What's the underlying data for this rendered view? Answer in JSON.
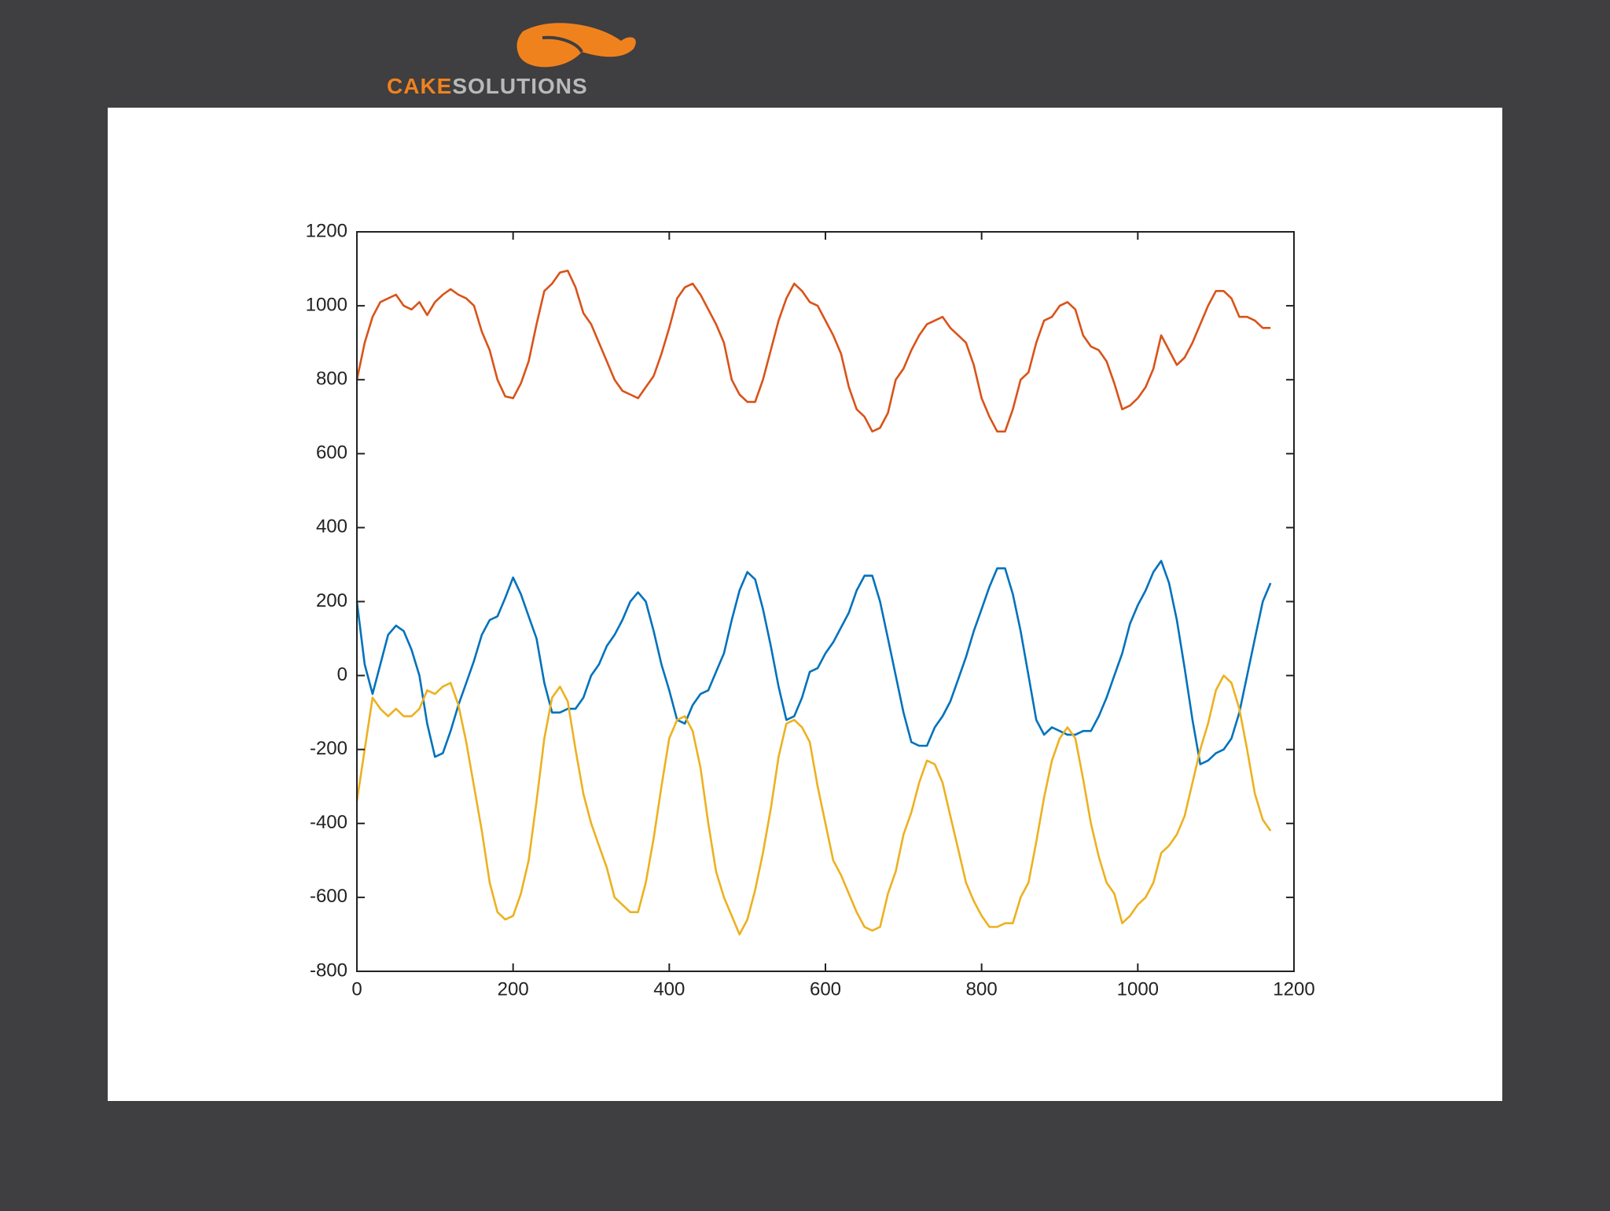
{
  "logo": {
    "part1": "CAKE",
    "part2": "SOLUTIONS"
  },
  "chart_data": {
    "type": "line",
    "x": [
      0,
      10,
      20,
      30,
      40,
      50,
      60,
      70,
      80,
      90,
      100,
      110,
      120,
      130,
      140,
      150,
      160,
      170,
      180,
      190,
      200,
      210,
      220,
      230,
      240,
      250,
      260,
      270,
      280,
      290,
      300,
      310,
      320,
      330,
      340,
      350,
      360,
      370,
      380,
      390,
      400,
      410,
      420,
      430,
      440,
      450,
      460,
      470,
      480,
      490,
      500,
      510,
      520,
      530,
      540,
      550,
      560,
      570,
      580,
      590,
      600,
      610,
      620,
      630,
      640,
      650,
      660,
      670,
      680,
      690,
      700,
      710,
      720,
      730,
      740,
      750,
      760,
      770,
      780,
      790,
      800,
      810,
      820,
      830,
      840,
      850,
      860,
      870,
      880,
      890,
      900,
      910,
      920,
      930,
      940,
      950,
      960,
      970,
      980,
      990,
      1000,
      1010,
      1020,
      1030,
      1040,
      1050,
      1060,
      1070,
      1080,
      1090,
      1100,
      1110,
      1120,
      1130,
      1140,
      1150,
      1160,
      1170
    ],
    "series": [
      {
        "color": "#d95319",
        "values": [
          800,
          900,
          970,
          1010,
          1020,
          1030,
          1000,
          990,
          1010,
          975,
          1010,
          1030,
          1045,
          1030,
          1020,
          1000,
          930,
          880,
          800,
          755,
          750,
          790,
          850,
          950,
          1040,
          1060,
          1090,
          1095,
          1050,
          980,
          950,
          900,
          850,
          800,
          770,
          760,
          750,
          780,
          810,
          870,
          940,
          1020,
          1050,
          1060,
          1030,
          990,
          950,
          900,
          800,
          760,
          740,
          740,
          800,
          880,
          960,
          1020,
          1060,
          1040,
          1010,
          1000,
          960,
          920,
          870,
          780,
          720,
          700,
          660,
          670,
          710,
          800,
          830,
          880,
          920,
          950,
          960,
          970,
          940,
          920,
          900,
          840,
          750,
          700,
          660,
          660,
          720,
          800,
          820,
          900,
          960,
          970,
          1000,
          1010,
          990,
          920,
          890,
          880,
          850,
          790,
          720,
          730,
          750,
          780,
          830,
          920,
          880,
          840,
          860,
          900,
          950,
          1000,
          1040,
          1040,
          1020,
          970,
          970,
          960,
          940,
          940
        ]
      },
      {
        "color": "#0072bd",
        "values": [
          200,
          30,
          -50,
          30,
          110,
          135,
          120,
          70,
          0,
          -130,
          -220,
          -210,
          -150,
          -80,
          -20,
          40,
          110,
          150,
          160,
          210,
          265,
          220,
          160,
          100,
          -20,
          -100,
          -100,
          -90,
          -90,
          -60,
          0,
          30,
          80,
          110,
          150,
          200,
          225,
          200,
          120,
          30,
          -40,
          -120,
          -130,
          -80,
          -50,
          -40,
          10,
          60,
          150,
          230,
          280,
          260,
          180,
          80,
          -30,
          -120,
          -110,
          -60,
          10,
          20,
          60,
          90,
          130,
          170,
          230,
          270,
          270,
          200,
          100,
          0,
          -100,
          -180,
          -190,
          -190,
          -140,
          -110,
          -70,
          -10,
          50,
          120,
          180,
          240,
          290,
          290,
          220,
          120,
          0,
          -120,
          -160,
          -140,
          -150,
          -160,
          -160,
          -150,
          -150,
          -110,
          -60,
          0,
          60,
          140,
          190,
          230,
          280,
          310,
          250,
          150,
          20,
          -120,
          -240,
          -230,
          -210,
          -200,
          -170,
          -100,
          0,
          100,
          200,
          250
        ]
      },
      {
        "color": "#edb120",
        "values": [
          -340,
          -200,
          -60,
          -90,
          -110,
          -90,
          -110,
          -110,
          -90,
          -40,
          -50,
          -30,
          -20,
          -80,
          -180,
          -300,
          -420,
          -560,
          -640,
          -660,
          -650,
          -590,
          -500,
          -340,
          -170,
          -60,
          -30,
          -70,
          -200,
          -320,
          -400,
          -460,
          -520,
          -600,
          -620,
          -640,
          -640,
          -560,
          -440,
          -300,
          -170,
          -120,
          -110,
          -150,
          -250,
          -400,
          -530,
          -600,
          -650,
          -700,
          -660,
          -580,
          -480,
          -360,
          -220,
          -130,
          -120,
          -140,
          -180,
          -300,
          -400,
          -500,
          -540,
          -590,
          -640,
          -680,
          -690,
          -680,
          -590,
          -530,
          -430,
          -370,
          -290,
          -230,
          -240,
          -290,
          -380,
          -470,
          -560,
          -610,
          -650,
          -680,
          -680,
          -670,
          -670,
          -600,
          -560,
          -450,
          -330,
          -230,
          -170,
          -140,
          -170,
          -280,
          -400,
          -490,
          -560,
          -590,
          -670,
          -650,
          -620,
          -600,
          -560,
          -480,
          -460,
          -430,
          -380,
          -290,
          -200,
          -130,
          -40,
          0,
          -20,
          -90,
          -200,
          -320,
          -390,
          -420
        ]
      }
    ],
    "xlim": [
      0,
      1200
    ],
    "xticks": [
      0,
      200,
      400,
      600,
      800,
      1000,
      1200
    ],
    "ylim": [
      -800,
      1200
    ],
    "yticks": [
      -800,
      -600,
      -400,
      -200,
      0,
      200,
      400,
      600,
      800,
      1000,
      1200
    ]
  }
}
